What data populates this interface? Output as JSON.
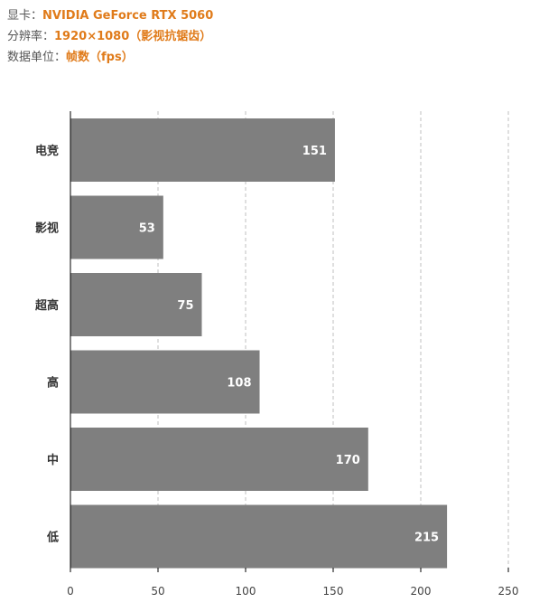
{
  "header": {
    "gpu_label": "显卡：",
    "gpu_value": "NVIDIA GeForce RTX 5060",
    "resolution_label": "分辨率：",
    "resolution_value": "1920×1080（影视抗锯齿）",
    "unit_label": "数据单位：",
    "unit_value": "帧数（fps）"
  },
  "colors": {
    "bar": "#7f7f7f",
    "accent": "#e07b1a",
    "grid": "#bfbfbf",
    "axis": "#000000"
  },
  "chart_data": {
    "type": "bar",
    "orientation": "horizontal",
    "categories": [
      "电竞",
      "影视",
      "超高",
      "高",
      "中",
      "低"
    ],
    "values": [
      151,
      53,
      75,
      108,
      170,
      215
    ],
    "xlim": [
      0,
      250
    ],
    "xticks": [
      0,
      50,
      100,
      150,
      200,
      250
    ],
    "grid": "vertical dashed",
    "data_labels": true,
    "title": "",
    "xlabel": "",
    "ylabel": ""
  }
}
